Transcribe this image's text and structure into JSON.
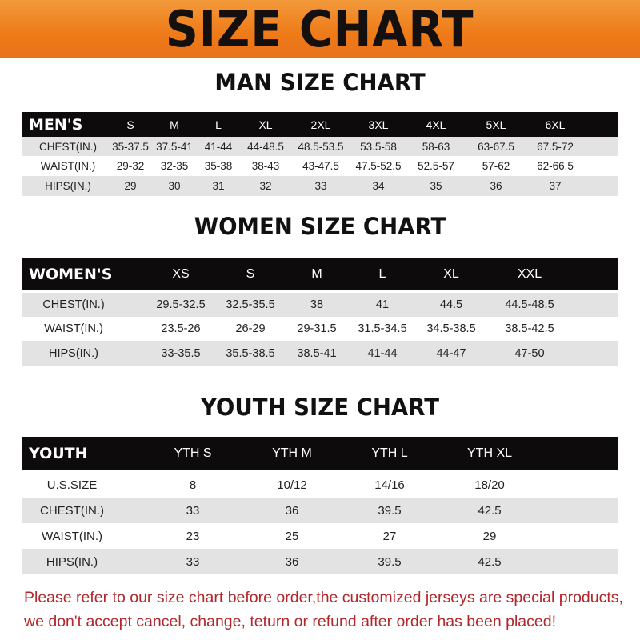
{
  "banner_title": "SIZE CHART",
  "men": {
    "title": "MAN SIZE CHART",
    "header": [
      "MEN'S",
      "S",
      "M",
      "L",
      "XL",
      "2XL",
      "3XL",
      "4XL",
      "5XL",
      "6XL"
    ],
    "rows": [
      [
        "CHEST(IN.)",
        "35-37.5",
        "37.5-41",
        "41-44",
        "44-48.5",
        "48.5-53.5",
        "53.5-58",
        "58-63",
        "63-67.5",
        "67.5-72"
      ],
      [
        "WAIST(IN.)",
        "29-32",
        "32-35",
        "35-38",
        "38-43",
        "43-47.5",
        "47.5-52.5",
        "52.5-57",
        "57-62",
        "62-66.5"
      ],
      [
        "HIPS(IN.)",
        "29",
        "30",
        "31",
        "32",
        "33",
        "34",
        "35",
        "36",
        "37"
      ]
    ]
  },
  "women": {
    "title": "WOMEN SIZE CHART",
    "header": [
      "WOMEN'S",
      "XS",
      "S",
      "M",
      "L",
      "XL",
      "XXL"
    ],
    "rows": [
      [
        "CHEST(IN.)",
        "29.5-32.5",
        "32.5-35.5",
        "38",
        "41",
        "44.5",
        "44.5-48.5"
      ],
      [
        "WAIST(IN.)",
        "23.5-26",
        "26-29",
        "29-31.5",
        "31.5-34.5",
        "34.5-38.5",
        "38.5-42.5"
      ],
      [
        "HIPS(IN.)",
        "33-35.5",
        "35.5-38.5",
        "38.5-41",
        "41-44",
        "44-47",
        "47-50"
      ]
    ]
  },
  "youth": {
    "title": "YOUTH SIZE CHART",
    "header": [
      "YOUTH",
      "YTH S",
      "YTH M",
      "YTH L",
      "YTH XL"
    ],
    "rows": [
      [
        "U.S.SIZE",
        "8",
        "10/12",
        "14/16",
        "18/20"
      ],
      [
        "CHEST(IN.)",
        "33",
        "36",
        "39.5",
        "42.5"
      ],
      [
        "WAIST(IN.)",
        "23",
        "25",
        "27",
        "29"
      ],
      [
        "HIPS(IN.)",
        "33",
        "36",
        "39.5",
        "42.5"
      ]
    ]
  },
  "note": {
    "line1": "Please refer to our size chart before order,the customized jerseys are special products,",
    "line2": "we don't accept cancel, change, teturn or refund after order has been placed!"
  },
  "colors": {
    "banner": "#ee7a18",
    "header_row": "#0d0b0b",
    "stripe": "#e3e3e3",
    "note": "#b3262a"
  }
}
